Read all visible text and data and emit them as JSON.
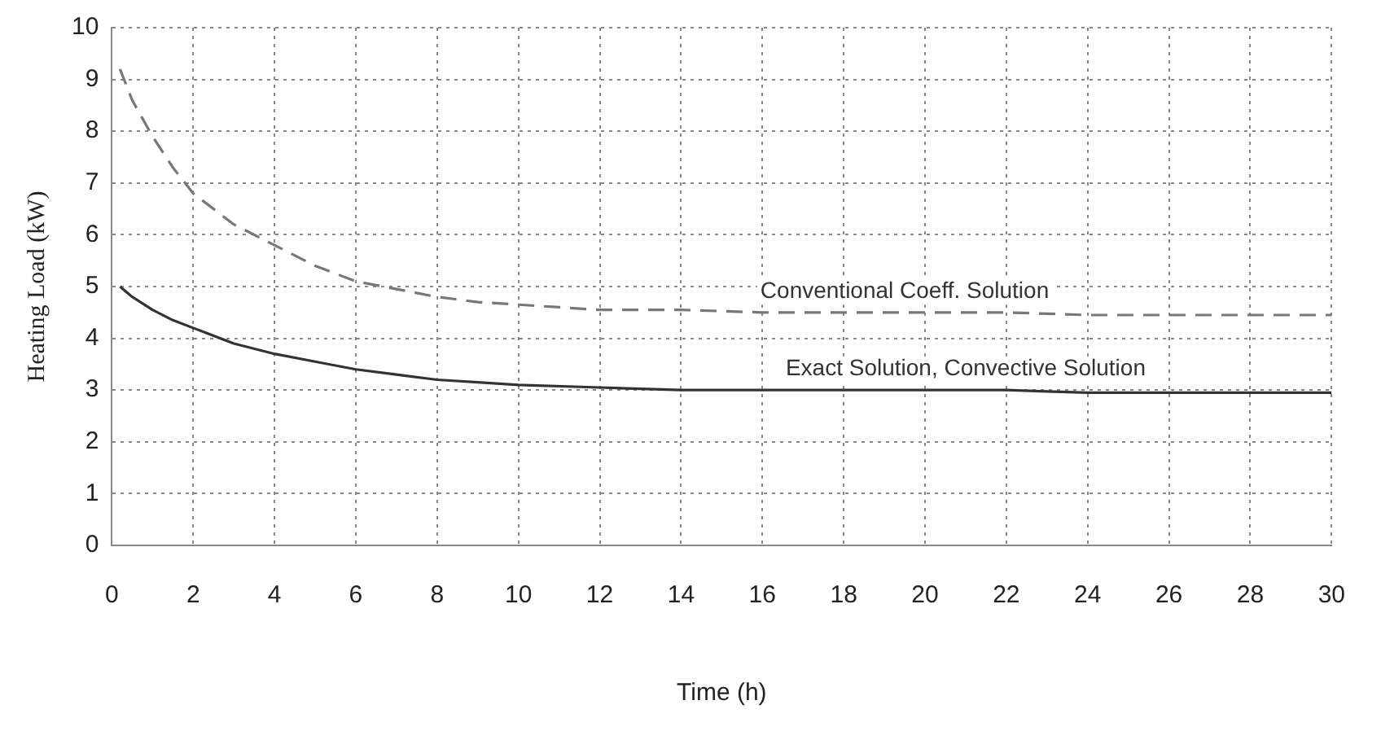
{
  "chart_data": {
    "type": "line",
    "xlabel": "Time (h)",
    "ylabel": "Heating Load (kW)",
    "xlim": [
      0,
      30
    ],
    "xticks": [
      0,
      2,
      4,
      6,
      8,
      10,
      12,
      14,
      16,
      18,
      20,
      22,
      24,
      26,
      28,
      30
    ],
    "ylim": [
      0,
      10
    ],
    "yticks": [
      0,
      1,
      2,
      3,
      4,
      5,
      6,
      7,
      8,
      9,
      10
    ],
    "grid": true,
    "marker": "none",
    "series": [
      {
        "color": "#777777",
        "line_style": "dashed",
        "x": [
          0.2,
          0.5,
          1,
          1.5,
          2,
          3,
          4,
          5,
          6,
          7,
          8,
          9,
          10,
          11,
          12,
          14,
          16,
          18,
          20,
          22,
          24,
          26,
          28,
          30
        ],
        "values": [
          9.2,
          8.6,
          7.9,
          7.3,
          6.8,
          6.2,
          5.8,
          5.4,
          5.1,
          4.95,
          4.8,
          4.7,
          4.65,
          4.6,
          4.55,
          4.55,
          4.5,
          4.5,
          4.5,
          4.5,
          4.45,
          4.45,
          4.45,
          4.45
        ]
      },
      {
        "color": "#333333",
        "line_style": "solid",
        "x": [
          0.2,
          0.5,
          1,
          1.5,
          2,
          3,
          4,
          5,
          6,
          7,
          8,
          9,
          10,
          12,
          14,
          16,
          18,
          20,
          22,
          24,
          26,
          28,
          30
        ],
        "values": [
          5.0,
          4.8,
          4.55,
          4.35,
          4.2,
          3.9,
          3.7,
          3.55,
          3.4,
          3.3,
          3.2,
          3.15,
          3.1,
          3.05,
          3.0,
          3.0,
          3.0,
          3.0,
          3.0,
          2.95,
          2.95,
          2.95,
          2.95
        ]
      }
    ],
    "annotations": [
      "Conventional Coeff. Solution",
      "Exact Solution, Convective Solution"
    ]
  }
}
